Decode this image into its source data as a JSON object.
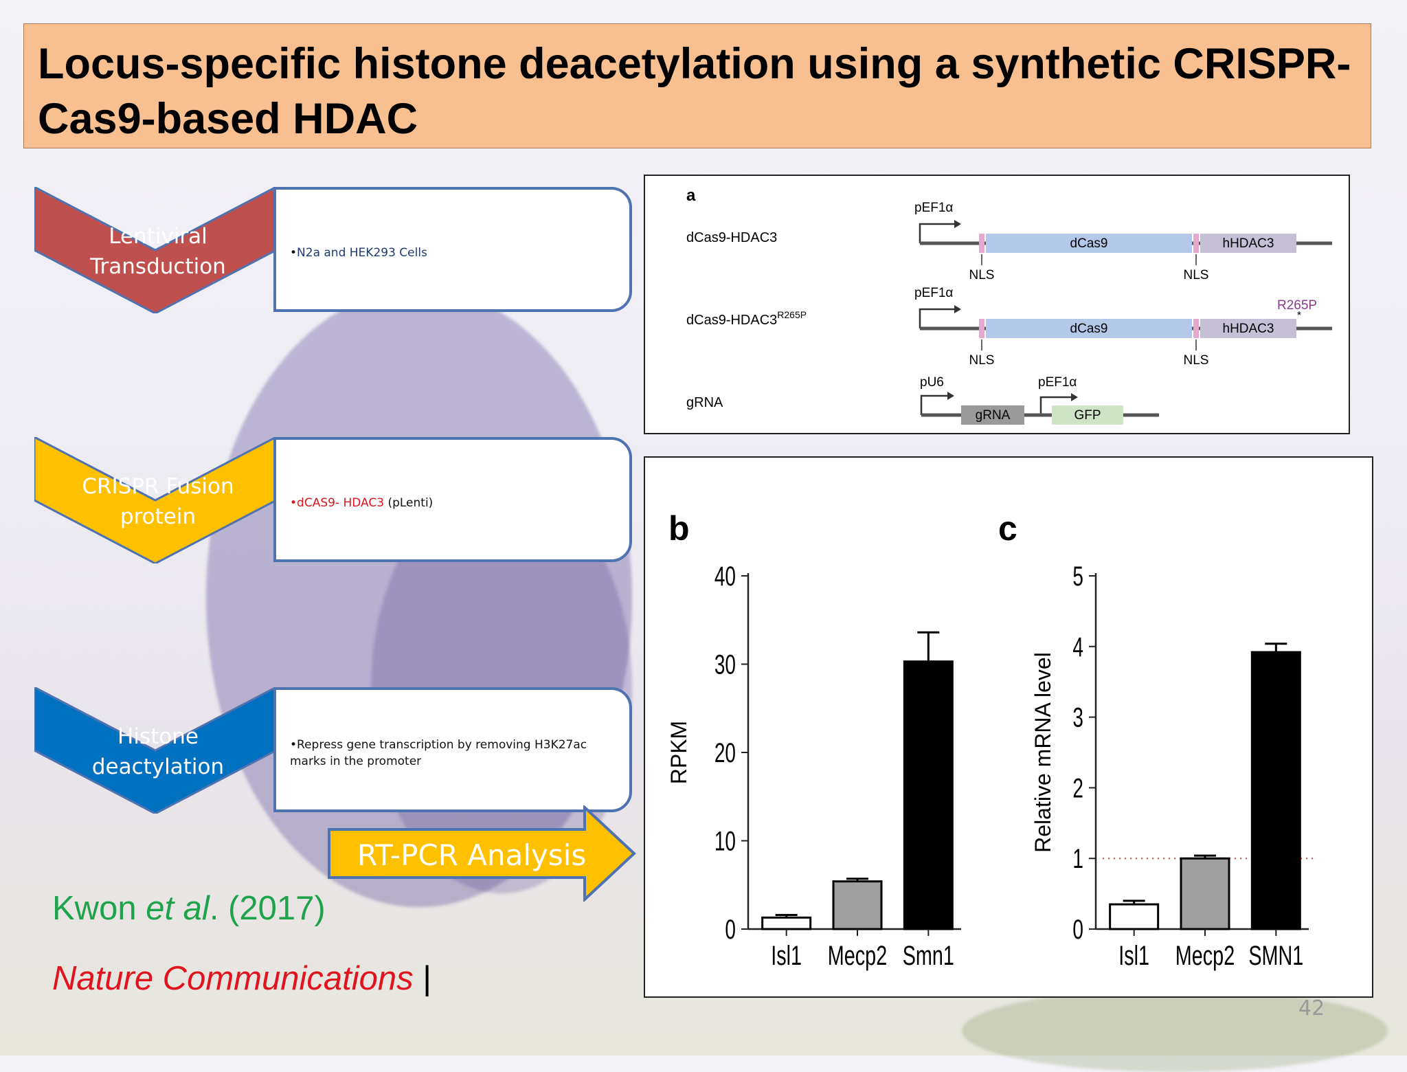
{
  "title": "Locus-specific histone deacetylation using a synthetic CRISPR-Cas9-based HDAC",
  "steps": [
    {
      "label": "Lentiviral Transduction",
      "color": "#c0504d",
      "detail": "N2a and HEK293 Cells"
    },
    {
      "label": "CRISPR Fusion protein",
      "color": "#ffc000",
      "detail_red": "dCAS9- HDAC3",
      "detail_rest": " (pLenti)"
    },
    {
      "label": "Histone deactylation",
      "color": "#0070c0",
      "detail": "Repress gene transcription by removing H3K27ac marks in the promoter"
    }
  ],
  "arrow_label": "RT-PCR Analysis",
  "citation": {
    "authors_a": "Kwon ",
    "authors_b": "et al",
    "authors_c": ". (2017)",
    "journal": "Nature Communications",
    "bar": "|"
  },
  "page_number": "42",
  "figure_a": {
    "panel": "a",
    "constructs": [
      {
        "name": "dCas9-HDAC3",
        "sup": "",
        "promoter": "pEF1α",
        "segments": [
          "dCas9",
          "hHDAC3"
        ],
        "nls": [
          "NLS",
          "NLS"
        ]
      },
      {
        "name": "dCas9-HDAC3",
        "sup": "R265P",
        "promoter": "pEF1α",
        "segments": [
          "dCas9",
          "hHDAC3"
        ],
        "nls": [
          "NLS",
          "NLS"
        ],
        "mutation": "R265P"
      },
      {
        "name": "gRNA",
        "sup": "",
        "promoter": "pU6",
        "promoter2": "pEF1α",
        "segments": [
          "gRNA",
          "GFP"
        ]
      }
    ],
    "colors": {
      "dcas9": "#b4c8ea",
      "hdac3": "#c6c0d6",
      "nls": "#e6a8cc",
      "grna": "#9a9a9a",
      "gfp": "#cfe3c6",
      "mutation": "#8a3a8a"
    }
  },
  "chart_data": [
    {
      "panel": "b",
      "type": "bar",
      "categories": [
        "Isl1",
        "Mecp2",
        "Smn1"
      ],
      "values": [
        1.3,
        5.4,
        30.3
      ],
      "errors": [
        0.3,
        0.3,
        3.3
      ],
      "bar_colors": [
        "#ffffff",
        "#a0a0a0",
        "#000000"
      ],
      "ylabel": "RPKM",
      "ylim": [
        0,
        40
      ],
      "yticks": [
        "0",
        "10",
        "20",
        "30",
        "40"
      ]
    },
    {
      "panel": "c",
      "type": "bar",
      "categories": [
        "Isl1",
        "Mecp2",
        "SMN1"
      ],
      "values": [
        0.35,
        1.0,
        3.92
      ],
      "errors": [
        0.05,
        0.04,
        0.12
      ],
      "bar_colors": [
        "#ffffff",
        "#a0a0a0",
        "#000000"
      ],
      "ylabel": "Relative mRNA level",
      "ylim": [
        0,
        5
      ],
      "yticks": [
        "0",
        "1",
        "2",
        "3",
        "4",
        "5"
      ],
      "reference_line": 1
    }
  ]
}
